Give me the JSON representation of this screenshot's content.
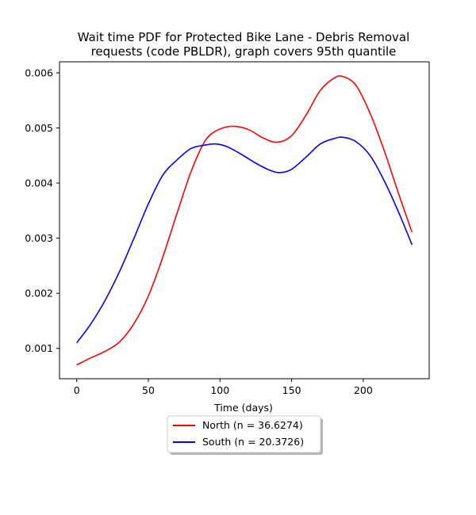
{
  "chart_data": {
    "type": "line",
    "title_lines": [
      "Wait time PDF for Protected Bike Lane - Debris Removal",
      "requests (code PBLDR), graph covers 95th quantile"
    ],
    "xlabel": "Time (days)",
    "ylabel": "",
    "xlim": [
      -12,
      246
    ],
    "ylim": [
      0.00045,
      0.0062
    ],
    "x_ticks": [
      0,
      50,
      100,
      150,
      200
    ],
    "y_ticks": [
      0.001,
      0.002,
      0.003,
      0.004,
      0.005,
      0.006
    ],
    "x_tick_labels": [
      "0",
      "50",
      "100",
      "150",
      "200"
    ],
    "y_tick_labels": [
      "0.001",
      "0.002",
      "0.003",
      "0.004",
      "0.005",
      "0.006"
    ],
    "grid": false,
    "legend_placement": "below plot, centered",
    "series": [
      {
        "name": "North (n = 36.6274)",
        "color": "#ff0000",
        "x": [
          0,
          10,
          20,
          30,
          40,
          50,
          60,
          70,
          80,
          90,
          100,
          110,
          120,
          130,
          140,
          150,
          160,
          170,
          180,
          186,
          195,
          205,
          215,
          225,
          234
        ],
        "y": [
          0.0007,
          0.00083,
          0.00095,
          0.00112,
          0.00145,
          0.00195,
          0.00265,
          0.00345,
          0.00422,
          0.00478,
          0.00498,
          0.00503,
          0.00497,
          0.00482,
          0.00474,
          0.00486,
          0.00523,
          0.00568,
          0.00591,
          0.00593,
          0.00577,
          0.00525,
          0.00456,
          0.00378,
          0.00311
        ]
      },
      {
        "name": "South (n = 20.3726)",
        "color": "#0000ff",
        "x": [
          0,
          10,
          20,
          30,
          40,
          50,
          60,
          70,
          80,
          90,
          97,
          105,
          115,
          125,
          135,
          142,
          150,
          160,
          170,
          180,
          186,
          195,
          205,
          215,
          225,
          234
        ],
        "y": [
          0.0011,
          0.00145,
          0.00188,
          0.0024,
          0.003,
          0.00362,
          0.00414,
          0.00442,
          0.00463,
          0.00469,
          0.00471,
          0.00466,
          0.00452,
          0.00436,
          0.00423,
          0.00419,
          0.00425,
          0.00447,
          0.00471,
          0.00481,
          0.00483,
          0.00475,
          0.00449,
          0.00402,
          0.00345,
          0.00288
        ]
      }
    ]
  }
}
